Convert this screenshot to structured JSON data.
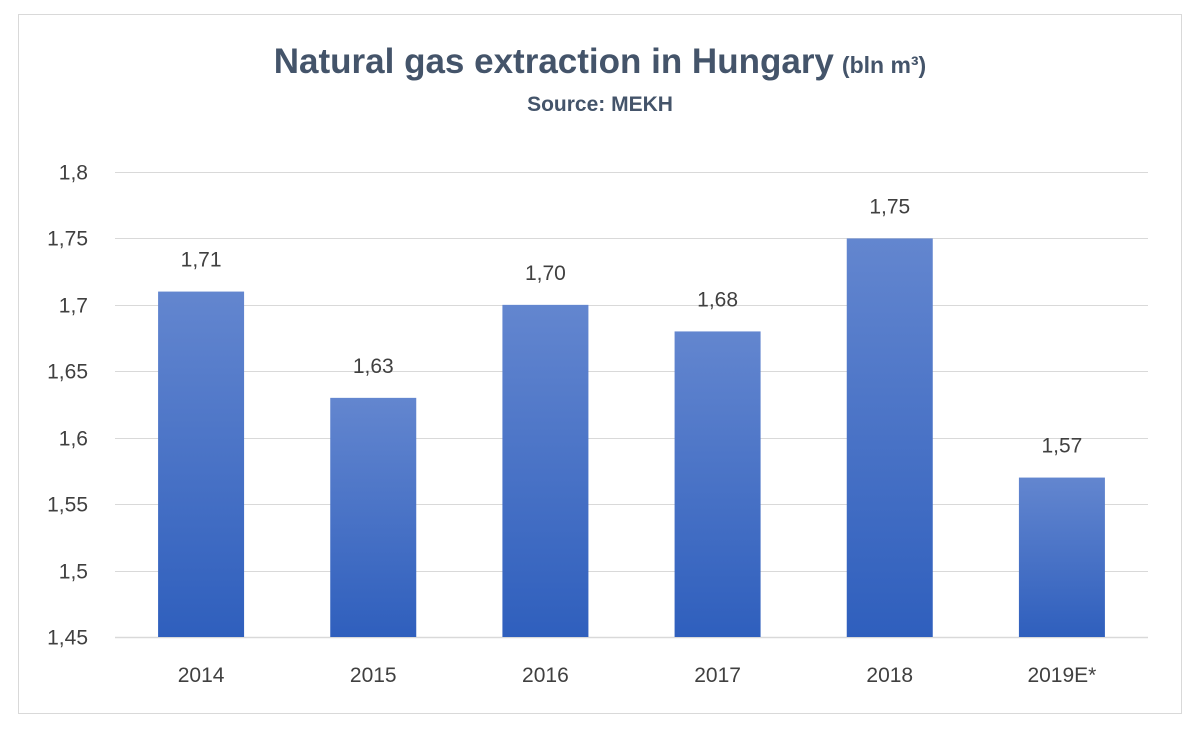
{
  "chart_data": {
    "type": "bar",
    "title": "Natural gas extraction in Hungary",
    "title_unit": "(bln m³)",
    "subtitle": "Source: MEKH",
    "xlabel": "",
    "ylabel": "",
    "categories": [
      "2014",
      "2015",
      "2016",
      "2017",
      "2018",
      "2019E*"
    ],
    "values": [
      1.71,
      1.63,
      1.7,
      1.68,
      1.75,
      1.57
    ],
    "data_labels": [
      "1,71",
      "1,63",
      "1,70",
      "1,68",
      "1,75",
      "1,57"
    ],
    "ylim": [
      1.45,
      1.8
    ],
    "yticks": [
      1.45,
      1.5,
      1.55,
      1.6,
      1.65,
      1.7,
      1.75,
      1.8
    ],
    "ytick_labels": [
      "1,45",
      "1,5",
      "1,55",
      "1,6",
      "1,65",
      "1,7",
      "1,75",
      "1,8"
    ],
    "grid": true,
    "legend": "none",
    "colors": {
      "bar_top": "#6386cf",
      "bar_bottom": "#2f5fbd",
      "title": "#44546a",
      "text": "#404040",
      "grid": "#d9d9d9"
    }
  }
}
